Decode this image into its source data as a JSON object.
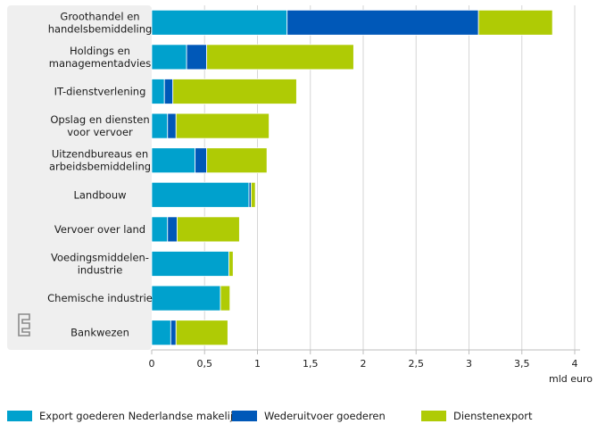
{
  "chart_data": {
    "type": "bar",
    "orientation": "horizontal",
    "stacked": true,
    "categories": [
      "Groothandel en\nhandelsbemiddeling",
      "Holdings en\nmanagementadvies",
      "IT-dienstverlening",
      "Opslag en diensten\nvoor vervoer",
      "Uitzendbureaus en\narbeidsbemiddeling",
      "Landbouw",
      "Vervoer over land",
      "Voedingsmiddelen-\nindustrie",
      "Chemische industrie",
      "Bankwezen"
    ],
    "series": [
      {
        "name": "Export goederen Nederlandse makelij",
        "color": "#00a1cd",
        "values": [
          1.28,
          0.33,
          0.12,
          0.15,
          0.41,
          0.92,
          0.15,
          0.73,
          0.65,
          0.18
        ]
      },
      {
        "name": "Wederuitvoer goederen",
        "color": "#0058b8",
        "values": [
          1.81,
          0.19,
          0.08,
          0.08,
          0.11,
          0.02,
          0.09,
          0.0,
          0.0,
          0.05
        ]
      },
      {
        "name": "Dienstenexport",
        "color": "#afcb05",
        "values": [
          0.7,
          1.39,
          1.17,
          0.88,
          0.57,
          0.04,
          0.59,
          0.04,
          0.09,
          0.49
        ]
      }
    ],
    "xticks": [
      "0",
      "0,5",
      "1",
      "1,5",
      "2",
      "2,5",
      "3",
      "3,5",
      "4"
    ],
    "xlim": [
      0,
      4
    ],
    "xlabel": "mld euro",
    "grid": true,
    "legend_position": "bottom"
  }
}
